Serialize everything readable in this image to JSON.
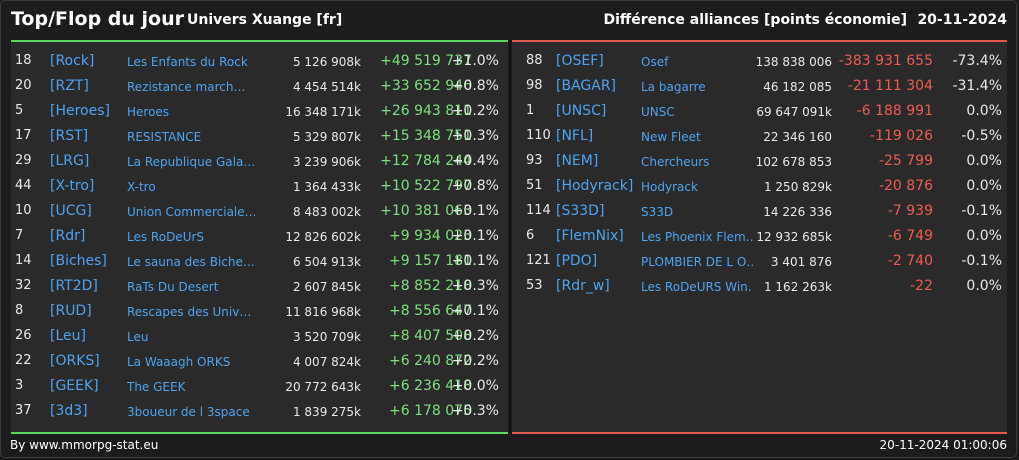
{
  "header": {
    "title": "Top/Flop du jour",
    "universe": "Univers Xuange [fr]",
    "diff_label": "Différence alliances [points économie]",
    "date": "20-11-2024"
  },
  "top": [
    {
      "rank": "18",
      "tag": "[Rock]",
      "name": "Les Enfants du Rock",
      "points": "5 126 908k",
      "diff": "+49 519 737",
      "pct": "+1.0%"
    },
    {
      "rank": "20",
      "tag": "[RZT]",
      "name": "Rezistance march…",
      "points": "4 454 514k",
      "diff": "+33 652 946",
      "pct": "+0.8%"
    },
    {
      "rank": "5",
      "tag": "[Heroes]",
      "name": "Heroes",
      "points": "16 348 171k",
      "diff": "+26 943 811",
      "pct": "+0.2%"
    },
    {
      "rank": "17",
      "tag": "[RST]",
      "name": "RESISTANCE",
      "points": "5 329 807k",
      "diff": "+15 348 751",
      "pct": "+0.3%"
    },
    {
      "rank": "29",
      "tag": "[LRG]",
      "name": "La Republique Gala…",
      "points": "3 239 906k",
      "diff": "+12 784 244",
      "pct": "+0.4%"
    },
    {
      "rank": "44",
      "tag": "[X-tro]",
      "name": "X-tro",
      "points": "1 364 433k",
      "diff": "+10 522 797",
      "pct": "+0.8%"
    },
    {
      "rank": "10",
      "tag": "[UCG]",
      "name": "Union Commerciale…",
      "points": "8 483 002k",
      "diff": "+10 381 063",
      "pct": "+0.1%"
    },
    {
      "rank": "7",
      "tag": "[Rdr]",
      "name": "Les RoDeUrS",
      "points": "12 826 602k",
      "diff": "+9 934 023",
      "pct": "+0.1%"
    },
    {
      "rank": "14",
      "tag": "[Biches]",
      "name": "Le sauna des Biche…",
      "points": "6 504 913k",
      "diff": "+9 157 181",
      "pct": "+0.1%"
    },
    {
      "rank": "32",
      "tag": "[RT2D]",
      "name": "RaTs Du Desert",
      "points": "2 607 845k",
      "diff": "+8 852 218",
      "pct": "+0.3%"
    },
    {
      "rank": "8",
      "tag": "[RUD]",
      "name": "Rescapes des Univ…",
      "points": "11 816 968k",
      "diff": "+8 556 647",
      "pct": "+0.1%"
    },
    {
      "rank": "26",
      "tag": "[Leu]",
      "name": "Leu",
      "points": "3 520 709k",
      "diff": "+8 407 508",
      "pct": "+0.2%"
    },
    {
      "rank": "22",
      "tag": "[ORKS]",
      "name": "La Waaagh ORKS",
      "points": "4 007 824k",
      "diff": "+6 240 872",
      "pct": "+0.2%"
    },
    {
      "rank": "3",
      "tag": "[GEEK]",
      "name": "The GEEK",
      "points": "20 772 643k",
      "diff": "+6 236 418",
      "pct": "+0.0%"
    },
    {
      "rank": "37",
      "tag": "[3d3]",
      "name": "3boueur de l 3space",
      "points": "1 839 275k",
      "diff": "+6 178 075",
      "pct": "+0.3%"
    }
  ],
  "flop": [
    {
      "rank": "88",
      "tag": "[OSEF]",
      "name": "Osef",
      "points": "138 838 006",
      "diff": "-383 931 655",
      "pct": "-73.4%"
    },
    {
      "rank": "98",
      "tag": "[BAGAR]",
      "name": "La bagarre",
      "points": "46 182 085",
      "diff": "-21 111 304",
      "pct": "-31.4%"
    },
    {
      "rank": "1",
      "tag": "[UNSC]",
      "name": "UNSC",
      "points": "69 647 091k",
      "diff": "-6 188 991",
      "pct": "0.0%"
    },
    {
      "rank": "110",
      "tag": "[NFL]",
      "name": "New Fleet",
      "points": "22 346 160",
      "diff": "-119 026",
      "pct": "-0.5%"
    },
    {
      "rank": "93",
      "tag": "[NEM]",
      "name": "Chercheurs",
      "points": "102 678 853",
      "diff": "-25 799",
      "pct": "0.0%"
    },
    {
      "rank": "51",
      "tag": "[Hodyrack]",
      "name": "Hodyrack",
      "points": "1 250 829k",
      "diff": "-20 876",
      "pct": "0.0%"
    },
    {
      "rank": "114",
      "tag": "[S33D]",
      "name": "S33D",
      "points": "14 226 336",
      "diff": "-7 939",
      "pct": "-0.1%"
    },
    {
      "rank": "6",
      "tag": "[FlemNix]",
      "name": "Les Phoenix Flem…",
      "points": "12 932 685k",
      "diff": "-6 749",
      "pct": "0.0%"
    },
    {
      "rank": "121",
      "tag": "[PDO]",
      "name": "PLOMBIER DE L O…",
      "points": "3 401 876",
      "diff": "-2 740",
      "pct": "-0.1%"
    },
    {
      "rank": "53",
      "tag": "[Rdr_w]",
      "name": "Les RoDeURS Win…",
      "points": "1 162 263k",
      "diff": "-22",
      "pct": "0.0%"
    }
  ],
  "footer": {
    "credit": "By www.mmorpg-stat.eu",
    "timestamp": "20-11-2024 01:00:06"
  },
  "colors": {
    "gain": "#7de07d",
    "loss": "#ee5c50",
    "tag": "#4ea3f0",
    "top_border": "#5fd35f",
    "flop_border": "#e05a4d"
  }
}
